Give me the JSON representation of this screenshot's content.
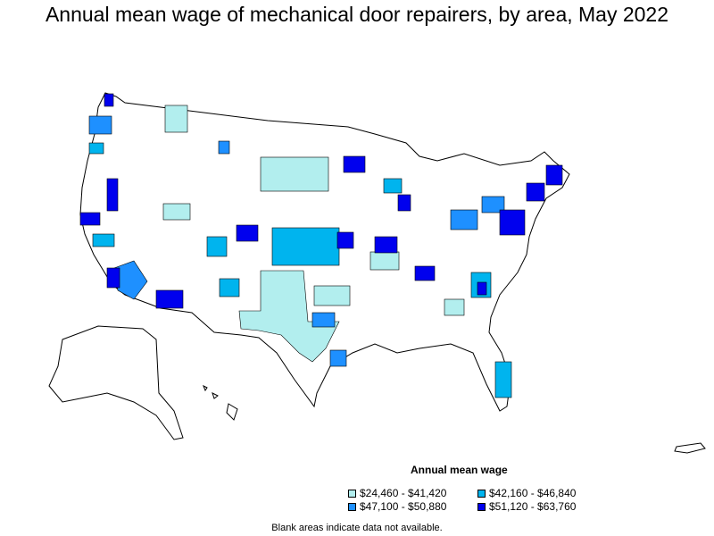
{
  "title": "Annual mean wage of mechanical door repairers, by area, May 2022",
  "legend": {
    "title": "Annual mean wage",
    "items": [
      {
        "label": "$24,460 - $41,420",
        "color": "#b2eeee"
      },
      {
        "label": "$42,160 - $46,840",
        "color": "#00b4ee"
      },
      {
        "label": "$47,100 - $50,880",
        "color": "#1e90ff"
      },
      {
        "label": "$51,120 - $63,760",
        "color": "#0000ee"
      }
    ]
  },
  "note": "Blank areas indicate data not available.",
  "colors": {
    "no_data": "#ffffff",
    "border": "#000000"
  }
}
